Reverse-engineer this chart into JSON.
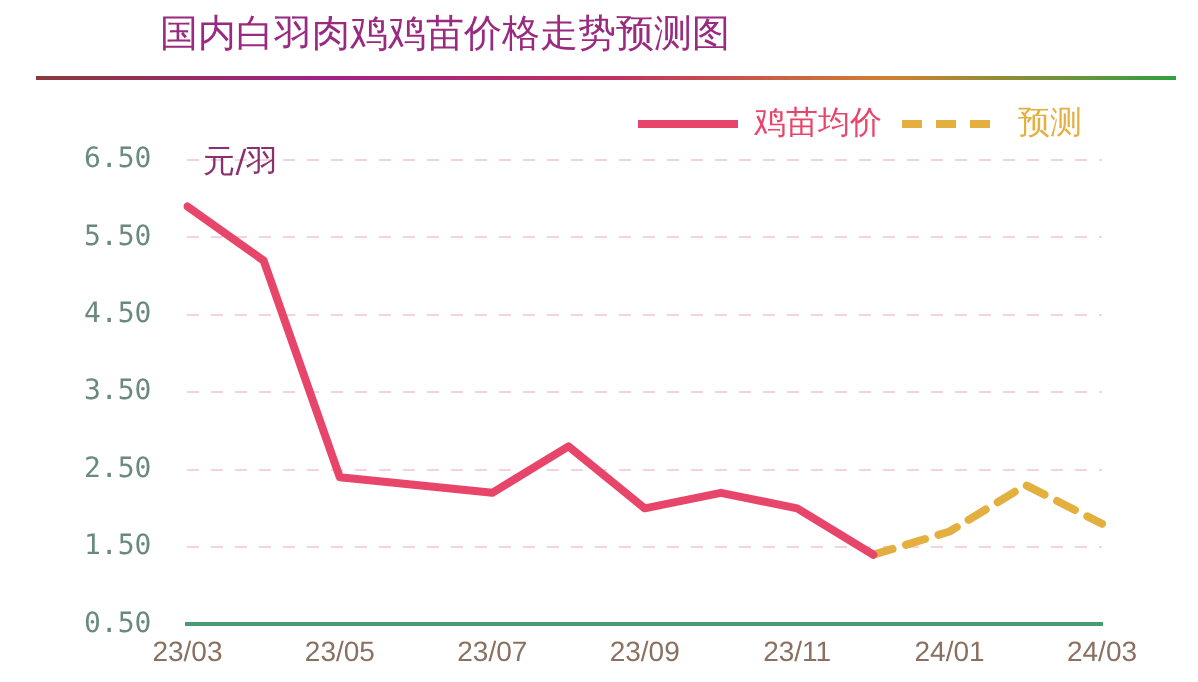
{
  "chart_data": {
    "type": "line",
    "title": "国内白羽肉鸡鸡苗价格走势预测图",
    "ylabel": "元/羽",
    "categories": [
      "23/03",
      null,
      "23/05",
      null,
      "23/07",
      null,
      "23/09",
      null,
      "23/11",
      null,
      "24/01",
      null,
      "24/03"
    ],
    "series": [
      {
        "name": "鸡苗均价",
        "color": "#e8456a",
        "line_style": "solid",
        "values": [
          5.9,
          5.2,
          2.4,
          2.3,
          2.2,
          2.8,
          2.0,
          2.2,
          2.0,
          1.4,
          null,
          null,
          null
        ]
      },
      {
        "name": "预测",
        "color": "#e3b040",
        "line_style": "dashed",
        "values": [
          null,
          null,
          null,
          null,
          null,
          null,
          null,
          null,
          null,
          1.4,
          1.7,
          2.3,
          1.8
        ]
      }
    ],
    "ylim": [
      0.5,
      6.5
    ],
    "yticks": [
      {
        "value": 0.5,
        "label": "0.50"
      },
      {
        "value": 1.5,
        "label": "1.50"
      },
      {
        "value": 2.5,
        "label": "2.50"
      },
      {
        "value": 3.5,
        "label": "3.50"
      },
      {
        "value": 4.5,
        "label": "4.50"
      },
      {
        "value": 5.5,
        "label": "5.50"
      },
      {
        "value": 6.5,
        "label": "6.50"
      }
    ],
    "grid": "y",
    "legend": "top right",
    "marker": "none"
  }
}
